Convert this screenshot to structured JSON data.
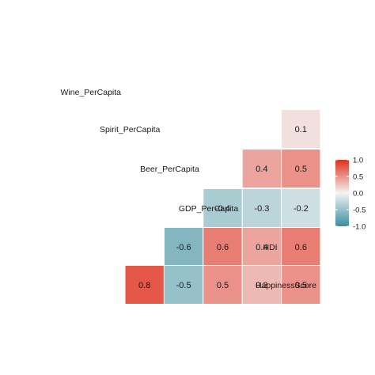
{
  "chart_data": {
    "type": "heatmap",
    "variables": [
      "HappinessScore",
      "HDI",
      "GDP_PerCapita",
      "Beer_PerCapita",
      "Spirit_PerCapita",
      "Wine_PerCapita"
    ],
    "rows": [
      {
        "label": "Wine_PerCapita",
        "values": []
      },
      {
        "label": "Spirit_PerCapita",
        "values": [
          0.1
        ]
      },
      {
        "label": "Beer_PerCapita",
        "values": [
          0.4,
          0.5
        ]
      },
      {
        "label": "GDP_PerCapita",
        "values": [
          -0.4,
          -0.3,
          -0.2
        ]
      },
      {
        "label": "HDI",
        "values": [
          -0.6,
          0.6,
          0.4,
          0.6
        ]
      },
      {
        "label": "HappinessScore",
        "values": [
          0.8,
          -0.5,
          0.5,
          0.3,
          0.5
        ]
      }
    ],
    "cell_labels": [
      [
        "0.1"
      ],
      [
        "0.4",
        "0.5"
      ],
      [
        "-0.4",
        "-0.3",
        "-0.2"
      ],
      [
        "-0.6",
        "0.6",
        "0.4",
        "0.6"
      ],
      [
        "0.8",
        "-0.5",
        "0.5",
        "0.3",
        "0.5"
      ]
    ],
    "color_scale": {
      "min": -1.0,
      "max": 1.0,
      "low_color": "#3a8ea1",
      "mid_color": "#f3f3f3",
      "high_color": "#e0301e"
    },
    "legend": {
      "position": "right",
      "ticks": [
        {
          "value": 1.0,
          "label": "1.0"
        },
        {
          "value": 0.5,
          "label": "0.5"
        },
        {
          "value": 0.0,
          "label": "0.0"
        },
        {
          "value": -0.5,
          "label": "-0.5"
        },
        {
          "value": -1.0,
          "label": "-1.0"
        }
      ]
    },
    "cell_border_color": "#ffffff"
  }
}
